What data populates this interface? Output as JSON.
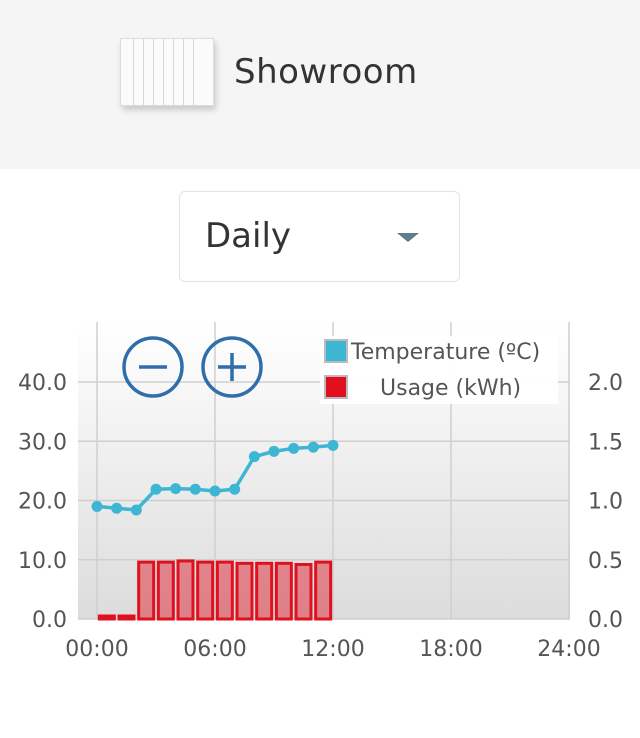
{
  "header": {
    "title": "Showroom",
    "icon": "radiator-icon"
  },
  "period": {
    "selected": "Daily",
    "icon": "chevron-down-icon"
  },
  "zoom": {
    "out_icon": "minus-circle-icon",
    "in_icon": "plus-circle-icon",
    "color": "#2f6eab"
  },
  "chart_data": {
    "type": "line",
    "title": "",
    "x_ticks": [
      "00:00",
      "06:00",
      "12:00",
      "18:00",
      "24:00"
    ],
    "x_range_hours": [
      0,
      24
    ],
    "grid": true,
    "legend_position": "top-right",
    "y_left": {
      "ticks": [
        "0.0",
        "10.0",
        "20.0",
        "30.0",
        "40.0"
      ],
      "range": [
        0,
        40
      ]
    },
    "y_right": {
      "ticks": [
        "0.0",
        "0.5",
        "1.0",
        "1.5",
        "2.0"
      ],
      "range": [
        0,
        2
      ]
    },
    "series": [
      {
        "name": "Temperature (ºC)",
        "type": "line",
        "axis": "left",
        "color": "#3cb6d3",
        "x": [
          0,
          1,
          2,
          3,
          4,
          5,
          6,
          7,
          8,
          9,
          10,
          11,
          12
        ],
        "values": [
          19.0,
          18.7,
          18.4,
          21.9,
          22.0,
          21.9,
          21.6,
          21.9,
          27.4,
          28.3,
          28.8,
          29.0,
          29.3
        ]
      },
      {
        "name": "Usage (kWh)",
        "type": "bar",
        "axis": "right",
        "color": "#e0101e",
        "x": [
          0,
          1,
          2,
          3,
          4,
          5,
          6,
          7,
          8,
          9,
          10,
          11
        ],
        "values": [
          0.0,
          0.0,
          0.48,
          0.48,
          0.49,
          0.48,
          0.48,
          0.47,
          0.47,
          0.47,
          0.46,
          0.48
        ]
      }
    ]
  }
}
